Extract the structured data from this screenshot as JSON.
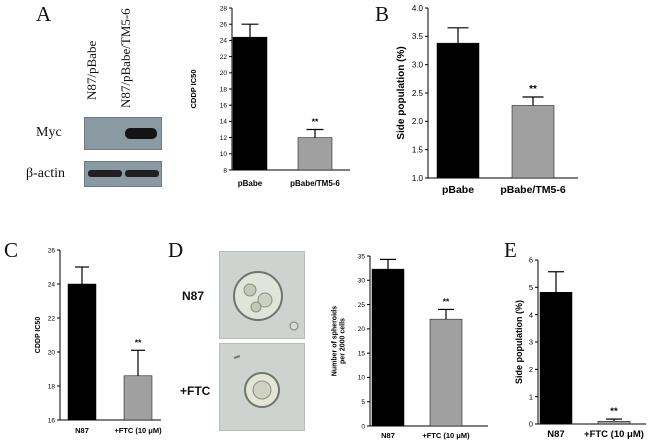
{
  "panels": {
    "A": "A",
    "B": "B",
    "C": "C",
    "D": "D",
    "E": "E"
  },
  "western": {
    "lanes": [
      "N87/pBabe",
      "N87/pBabe/TM5-6"
    ],
    "rows": [
      "Myc",
      "β-actin"
    ]
  },
  "photos": {
    "top_label": "N87",
    "bottom_label": "+FTC"
  },
  "chart_data": [
    {
      "id": "A",
      "type": "bar",
      "categories": [
        "pBabe",
        "pBabe/TM5-6"
      ],
      "values": [
        24.4,
        12.0
      ],
      "errors": [
        1.6,
        1.0
      ],
      "ylabel": "CDDP IC50",
      "ylim": [
        8,
        28
      ],
      "yticks": [
        8,
        10,
        12,
        14,
        16,
        18,
        20,
        22,
        24,
        26,
        28
      ],
      "annotations": [
        "",
        "**"
      ],
      "colors": [
        "#000000",
        "#a0a0a0"
      ]
    },
    {
      "id": "B",
      "type": "bar",
      "categories": [
        "pBabe",
        "pBabe/TM5-6"
      ],
      "values": [
        3.38,
        2.28
      ],
      "errors": [
        0.27,
        0.15
      ],
      "ylabel": "Side population (%)",
      "ylim": [
        1.0,
        4.0
      ],
      "yticks": [
        1.0,
        1.5,
        2.0,
        2.5,
        3.0,
        3.5,
        4.0
      ],
      "annotations": [
        "",
        "**"
      ],
      "colors": [
        "#000000",
        "#a0a0a0"
      ]
    },
    {
      "id": "C",
      "type": "bar",
      "categories": [
        "N87",
        "+FTC (10 μM)"
      ],
      "values": [
        24.0,
        18.6
      ],
      "errors": [
        1.0,
        1.5
      ],
      "ylabel": "CDDP IC50",
      "ylim": [
        16,
        26
      ],
      "yticks": [
        16,
        18,
        20,
        22,
        24,
        26
      ],
      "annotations": [
        "",
        "**"
      ],
      "colors": [
        "#000000",
        "#a0a0a0"
      ]
    },
    {
      "id": "D",
      "type": "bar",
      "categories": [
        "N87",
        "+FTC (10 μM)"
      ],
      "values": [
        32.3,
        22.0
      ],
      "errors": [
        2.0,
        2.0
      ],
      "ylabel": "Number of spheroids per 2000 cells",
      "ylim": [
        0,
        35
      ],
      "yticks": [
        0,
        5,
        10,
        15,
        20,
        25,
        30,
        35
      ],
      "annotations": [
        "",
        "**"
      ],
      "colors": [
        "#000000",
        "#a0a0a0"
      ]
    },
    {
      "id": "E",
      "type": "bar",
      "categories": [
        "N87",
        "+FTC (10 μM)"
      ],
      "values": [
        4.82,
        0.1
      ],
      "errors": [
        0.75,
        0.08
      ],
      "ylabel": "Side population (%)",
      "ylim": [
        0,
        6
      ],
      "yticks": [
        0,
        1,
        2,
        3,
        4,
        5,
        6
      ],
      "annotations": [
        "",
        "**"
      ],
      "colors": [
        "#000000",
        "#a0a0a0"
      ]
    }
  ]
}
